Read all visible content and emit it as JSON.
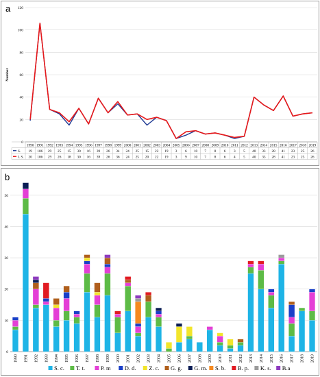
{
  "chart_data": [
    {
      "panel": "a",
      "type": "line",
      "title": "",
      "xlabel": "",
      "ylabel": "Number",
      "ylim": [
        0,
        120
      ],
      "yticks": [
        "0",
        "20",
        "40",
        "60",
        "80",
        "100",
        "120"
      ],
      "x": [
        "1990",
        "1991",
        "1992",
        "1993",
        "1994",
        "1995",
        "1996",
        "1997",
        "1998",
        "1999",
        "2000",
        "2001",
        "2002",
        "2003",
        "2004",
        "2005",
        "2006",
        "2007",
        "2008",
        "2009",
        "2010",
        "2011",
        "2012",
        "2013",
        "2014",
        "2015",
        "2016",
        "2017",
        "2018",
        "2019"
      ],
      "series": [
        {
          "name": "S.",
          "color": "#1f3a93",
          "values": [
            19,
            106,
            29,
            25,
            15,
            30,
            16,
            39,
            26,
            34,
            24,
            25,
            15,
            22,
            19,
            3,
            6,
            10,
            7,
            8,
            6,
            3,
            5,
            40,
            33,
            28,
            41,
            23,
            25,
            26
          ]
        },
        {
          "name": "I. S.",
          "color": "#e8191a",
          "values": [
            20,
            106,
            29,
            26,
            18,
            30,
            16,
            39,
            26,
            36,
            24,
            25,
            20,
            22,
            19,
            3,
            9,
            10,
            7,
            8,
            6,
            4,
            5,
            40,
            33,
            28,
            41,
            23,
            25,
            26
          ]
        }
      ],
      "grid": true,
      "legend": "table-below"
    },
    {
      "panel": "b",
      "type": "bar",
      "stacked": true,
      "title": "",
      "xlabel": "",
      "ylabel": "",
      "ylim": [
        0,
        55
      ],
      "yticks": [
        "0",
        "10",
        "20",
        "30",
        "40",
        "50"
      ],
      "categories": [
        "1990",
        "1991",
        "1992",
        "1993",
        "1994",
        "1995",
        "1996",
        "1997",
        "1998",
        "1999",
        "2000",
        "2001",
        "2002",
        "2003",
        "2004",
        "2005",
        "2006",
        "2007",
        "2008",
        "2009",
        "2010",
        "2011",
        "2012",
        "2013",
        "2014",
        "2015",
        "2016",
        "2017",
        "2018",
        "2019"
      ],
      "series": [
        {
          "name": "S. c.",
          "color": "#1eb4e6",
          "values": [
            7,
            44,
            14,
            15,
            8,
            10,
            9,
            19,
            11,
            18,
            6,
            13,
            5,
            11,
            8,
            0,
            3,
            4,
            3,
            7,
            2,
            1,
            2,
            25,
            20,
            14,
            28,
            5,
            13,
            10
          ]
        },
        {
          "name": "T. t.",
          "color": "#5dbb46",
          "values": [
            1,
            5,
            1,
            0,
            2,
            3,
            2,
            6,
            4,
            7,
            5,
            8,
            1,
            5,
            3,
            1,
            0,
            1,
            0,
            0,
            1,
            1,
            1,
            2,
            6,
            4,
            1,
            4,
            1,
            3
          ]
        },
        {
          "name": "P. m",
          "color": "#e43fd6",
          "values": [
            2,
            3,
            5,
            1,
            4,
            4,
            1,
            3,
            3,
            2,
            1,
            1,
            2,
            0,
            1,
            0,
            0,
            0,
            0,
            1,
            2,
            0,
            0,
            1,
            2,
            1,
            1,
            2,
            0,
            6
          ]
        },
        {
          "name": "D. d.",
          "color": "#1a3fc8",
          "values": [
            1,
            0,
            0,
            1,
            0,
            2,
            1,
            1,
            0,
            1,
            0,
            0,
            1,
            0,
            1,
            0,
            0,
            0,
            0,
            0,
            0,
            0,
            0,
            0,
            0,
            1,
            0,
            4,
            0,
            1
          ]
        },
        {
          "name": "Z. c.",
          "color": "#f2e52b",
          "values": [
            0,
            0,
            0,
            0,
            1,
            0,
            0,
            1,
            1,
            0,
            0,
            0,
            0,
            0,
            0,
            2,
            5,
            3,
            0,
            0,
            1,
            2,
            0,
            0,
            0,
            0,
            0,
            0,
            0,
            0
          ]
        },
        {
          "name": "G. g.",
          "color": "#b05f1c",
          "values": [
            0,
            0,
            2,
            0,
            2,
            2,
            0,
            1,
            3,
            2,
            0,
            1,
            0,
            2,
            0,
            0,
            0,
            0,
            0,
            0,
            0,
            0,
            1,
            0,
            0,
            0,
            0,
            1,
            0,
            0
          ]
        },
        {
          "name": "G. m.",
          "color": "#0b1d55",
          "values": [
            0,
            2,
            1,
            0,
            0,
            0,
            0,
            0,
            0,
            0,
            0,
            0,
            0,
            0,
            1,
            0,
            1,
            0,
            0,
            0,
            0,
            0,
            0,
            0,
            0,
            0,
            0,
            0,
            0,
            0
          ]
        },
        {
          "name": "S. b.",
          "color": "#f5891f",
          "values": [
            0,
            0,
            0,
            0,
            0,
            0,
            0,
            0,
            0,
            0,
            0,
            0,
            7,
            0,
            0,
            0,
            0,
            0,
            0,
            0,
            0,
            0,
            0,
            0,
            0,
            0,
            0,
            0,
            0,
            0
          ]
        },
        {
          "name": "B. p.",
          "color": "#e11b22",
          "values": [
            0,
            0,
            0,
            5,
            0,
            0,
            0,
            0,
            0,
            0,
            1,
            1,
            0,
            1,
            0,
            0,
            0,
            0,
            0,
            0,
            0,
            0,
            0,
            1,
            1,
            0,
            0,
            0,
            0,
            0
          ]
        },
        {
          "name": "K. s.",
          "color": "#9b9b9b",
          "values": [
            0,
            0,
            0,
            0,
            0,
            0,
            0,
            0,
            0,
            0,
            0,
            0,
            1,
            0,
            0,
            0,
            0,
            0,
            0,
            0,
            0,
            0,
            0,
            0,
            0,
            0,
            1,
            0,
            0,
            0
          ]
        },
        {
          "name": "B.a",
          "color": "#8e3bbf",
          "values": [
            0,
            0,
            1,
            0,
            0,
            0,
            0,
            0,
            0,
            1,
            0,
            0,
            1,
            0,
            0,
            0,
            0,
            0,
            0,
            0,
            0,
            0,
            0,
            0,
            0,
            0,
            0,
            0,
            0,
            0
          ]
        }
      ],
      "grid": true,
      "legend": "bottom"
    }
  ]
}
